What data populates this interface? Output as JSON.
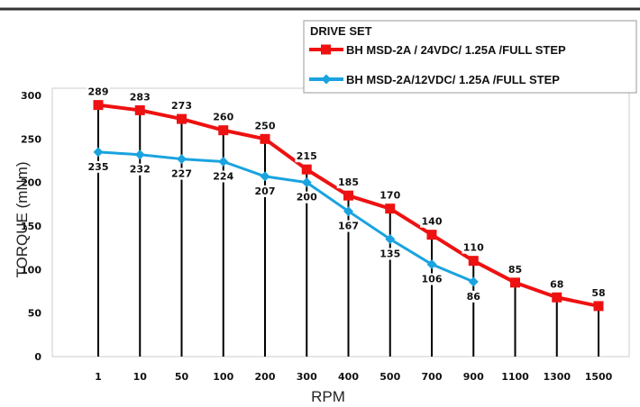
{
  "chart_data": {
    "type": "line",
    "categories": [
      "1",
      "10",
      "50",
      "100",
      "200",
      "300",
      "400",
      "500",
      "700",
      "900",
      "1100",
      "1300",
      "1500"
    ],
    "ylim": [
      0,
      300
    ],
    "yticks": [
      0,
      50,
      100,
      150,
      200,
      250,
      300
    ],
    "xlabel": "RPM",
    "ylabel": "TORQUE (mNm)",
    "grid": false,
    "drop_lines": true,
    "legend": {
      "title": "DRIVE SET",
      "placement": "top-right"
    },
    "series": [
      {
        "name": "BH MSD-2A / 24VDC/ 1.25A /FULL STEP",
        "color": "#ee1111",
        "marker": "square",
        "values": [
          289,
          283,
          273,
          260,
          250,
          215,
          185,
          170,
          140,
          110,
          85,
          68,
          58
        ],
        "label_position": "above"
      },
      {
        "name": "BH MSD-2A/12VDC/ 1.25A /FULL STEP",
        "color": "#1aa3e0",
        "marker": "diamond",
        "values": [
          235,
          232,
          227,
          224,
          207,
          200,
          167,
          135,
          106,
          86,
          null,
          null,
          null
        ],
        "label_position": "below"
      }
    ]
  }
}
